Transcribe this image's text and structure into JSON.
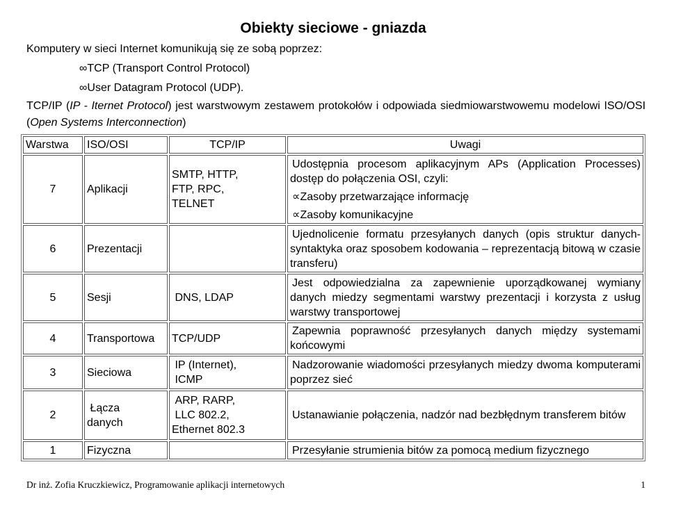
{
  "title": "Obiekty sieciowe - gniazda",
  "intro": {
    "line1": "Komputery w sieci Internet komunikują się ze sobą poprzez:",
    "bullets": [
      {
        "marker": "∞",
        "text": "TCP (Transport Control Protocol)"
      },
      {
        "marker": "∞",
        "text": "User Datagram Protocol (UDP)."
      }
    ],
    "tcp_paragraph": {
      "pre": "TCP/IP (",
      "italic1": "IP - Iternet Protocol",
      "mid": ") jest warstwowym zestawem protokołów i odpowiada siedmiowarstwowemu modelowi ISO/OSI (",
      "italic2": "Open Systems Interconnection",
      "post": ")"
    }
  },
  "table": {
    "headers": [
      "Warstwa",
      "ISO/OSI",
      "TCP/IP",
      "Uwagi"
    ],
    "rows": [
      {
        "layer": "7",
        "iso": "Aplikacji",
        "tcp": "SMTP, HTTP,\nFTP, RPC,\nTELNET",
        "uwagi_intro": "Udostępnia procesom aplikacyjnym APs (Application Processes) dostęp do połączenia OSI, czyli:",
        "uwagi_bullets": [
          {
            "marker": "∝",
            "text": "Zasoby przetwarzające informację"
          },
          {
            "marker": "∝",
            "text": "Zasoby komunikacyjne"
          }
        ]
      },
      {
        "layer": "6",
        "iso": "Prezentacji",
        "tcp": "",
        "uwagi": "Ujednolicenie formatu przesyłanych danych (opis struktur danych-syntaktyka oraz sposobem kodowania – reprezentacją bitową w czasie transferu)"
      },
      {
        "layer": "5",
        "iso": "Sesji",
        "tcp": " DNS, LDAP",
        "uwagi": "Jest odpowiedzialna za zapewnienie uporządkowanej wymiany danych miedzy segmentami warstwy prezentacji i korzysta z usług warstwy transportowej"
      },
      {
        "layer": "4",
        "iso": "Transportowa",
        "tcp": "TCP/UDP",
        "uwagi": "Zapewnia poprawność przesyłanych danych między systemami końcowymi"
      },
      {
        "layer": "3",
        "iso": "Sieciowa",
        "tcp": " IP (Internet),\n ICMP",
        "uwagi": "Nadzorowanie wiadomości przesyłanych miedzy dwoma komputerami poprzez sieć"
      },
      {
        "layer": "2",
        "iso": " Łącza\ndanych",
        "tcp": " ARP, RARP,\n LLC 802.2,\nEthernet 802.3",
        "uwagi": "Ustanawianie połączenia, nadzór nad bezbłędnym transferem bitów"
      },
      {
        "layer": "1",
        "iso": "Fizyczna",
        "tcp": "",
        "uwagi": "Przesyłanie strumienia bitów za pomocą medium fizycznego"
      }
    ]
  },
  "footer": {
    "author": "Dr inż. Zofia Kruczkiewicz, Programowanie aplikacji internetowych",
    "page_number": "1"
  }
}
